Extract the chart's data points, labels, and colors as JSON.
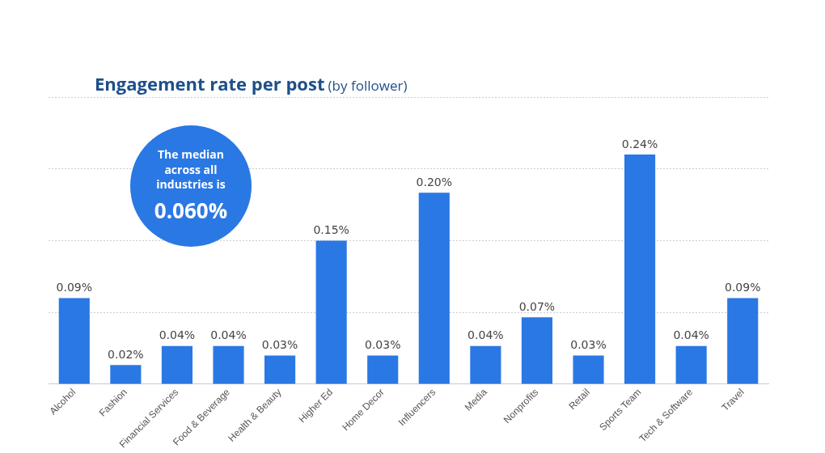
{
  "chart_data": {
    "type": "bar",
    "title": "Engagement rate per post",
    "subtitle": "(by follower)",
    "categories": [
      "Alcohol",
      "Fashion",
      "Financial Services",
      "Food & Beverage",
      "Health & Beauty",
      "Higher Ed",
      "Home Decor",
      "Influencers",
      "Media",
      "Nonprofits",
      "Retail",
      "Sports Team",
      "Tech & Software",
      "Travel"
    ],
    "values": [
      0.09,
      0.02,
      0.04,
      0.04,
      0.03,
      0.15,
      0.03,
      0.2,
      0.04,
      0.07,
      0.03,
      0.24,
      0.04,
      0.09
    ],
    "value_labels": [
      "0.09%",
      "0.02%",
      "0.04%",
      "0.04%",
      "0.03%",
      "0.15%",
      "0.03%",
      "0.20%",
      "0.04%",
      "0.07%",
      "0.03%",
      "0.24%",
      "0.04%",
      "0.09%"
    ],
    "color": "#2a78e4",
    "ylim": [
      0,
      0.3
    ],
    "yticks": [
      {
        "value": 0,
        "label": null
      },
      {
        "value": 0.075,
        "label": null
      },
      {
        "value": 0.15,
        "label": null
      },
      {
        "value": 0.225,
        "label": null
      },
      {
        "value": 0.3,
        "label": null
      }
    ],
    "tick_labels": "x",
    "grid": "y",
    "annotations": [
      "The median across all industries is",
      "0.060%"
    ]
  }
}
